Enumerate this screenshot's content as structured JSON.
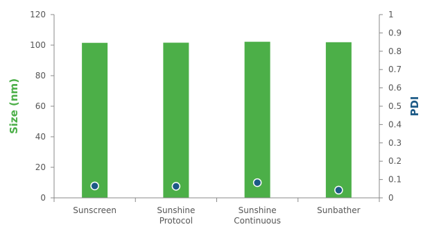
{
  "chart_data": {
    "type": "bar",
    "categories": [
      [
        "Sunscreen"
      ],
      [
        "Sunshine",
        "Protocol"
      ],
      [
        "Sunshine",
        "Continuous"
      ],
      [
        "Sunbather"
      ]
    ],
    "series": [
      {
        "axis": "left",
        "kind": "bar",
        "color": "#4caf48",
        "values": [
          101.5,
          101.6,
          102.2,
          101.9
        ]
      },
      {
        "axis": "right",
        "kind": "scatter",
        "color": "#1c5a86",
        "values": [
          0.065,
          0.063,
          0.083,
          0.042
        ]
      }
    ],
    "ylabel": "Size (nm)",
    "ylabel_color": "#4caf48",
    "y2label": "PDI",
    "y2label_color": "#1c5a86",
    "ylim": [
      0,
      120
    ],
    "yticks": [
      "0",
      "20",
      "40",
      "60",
      "80",
      "100",
      "120"
    ],
    "y2lim": [
      0,
      1
    ],
    "y2ticks": [
      "0",
      "0.1",
      "0.2",
      "0.3",
      "0.4",
      "0.5",
      "0.6",
      "0.7",
      "0.8",
      "0.9",
      "1"
    ],
    "grid": false,
    "legend": "none"
  }
}
